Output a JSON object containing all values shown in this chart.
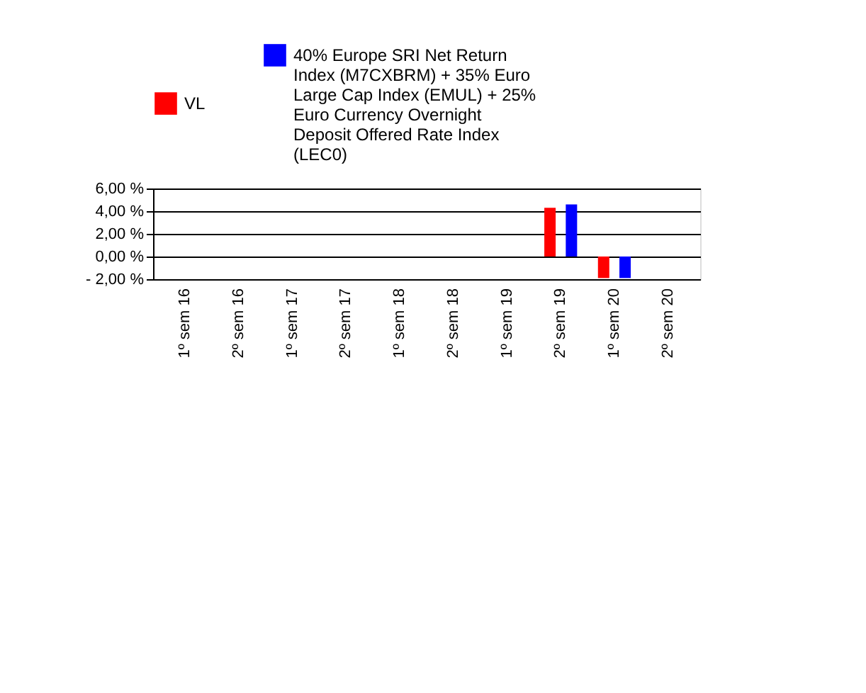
{
  "chart_data": {
    "type": "bar",
    "categories": [
      "1º sem 16",
      "2º sem 16",
      "1º sem 17",
      "2º sem 17",
      "1º sem 18",
      "2º sem 18",
      "1º sem 19",
      "2º sem 19",
      "1º sem 20",
      "2º sem 20"
    ],
    "series": [
      {
        "name": "VL",
        "color": "#ff0000",
        "values": [
          null,
          null,
          null,
          null,
          null,
          null,
          null,
          4.3,
          -1.9,
          null
        ]
      },
      {
        "name": "40% Europe SRI Net Return Index (M7CXBRM) + 35% Euro Large Cap Index (EMUL) + 25% Euro Currency Overnight Deposit Offered Rate Index (LEC0)",
        "color": "#0000ff",
        "values": [
          null,
          null,
          null,
          null,
          null,
          null,
          null,
          4.6,
          -1.9,
          null
        ]
      }
    ],
    "ylim": [
      -2,
      6
    ],
    "yticks": [
      {
        "value": -2,
        "label": "- 2,00 %"
      },
      {
        "value": 0,
        "label": "0,00 %"
      },
      {
        "value": 2,
        "label": "2,00 %"
      },
      {
        "value": 4,
        "label": "4,00 %"
      },
      {
        "value": 6,
        "label": "6,00 %"
      }
    ],
    "grid": "y",
    "legend": "top"
  }
}
